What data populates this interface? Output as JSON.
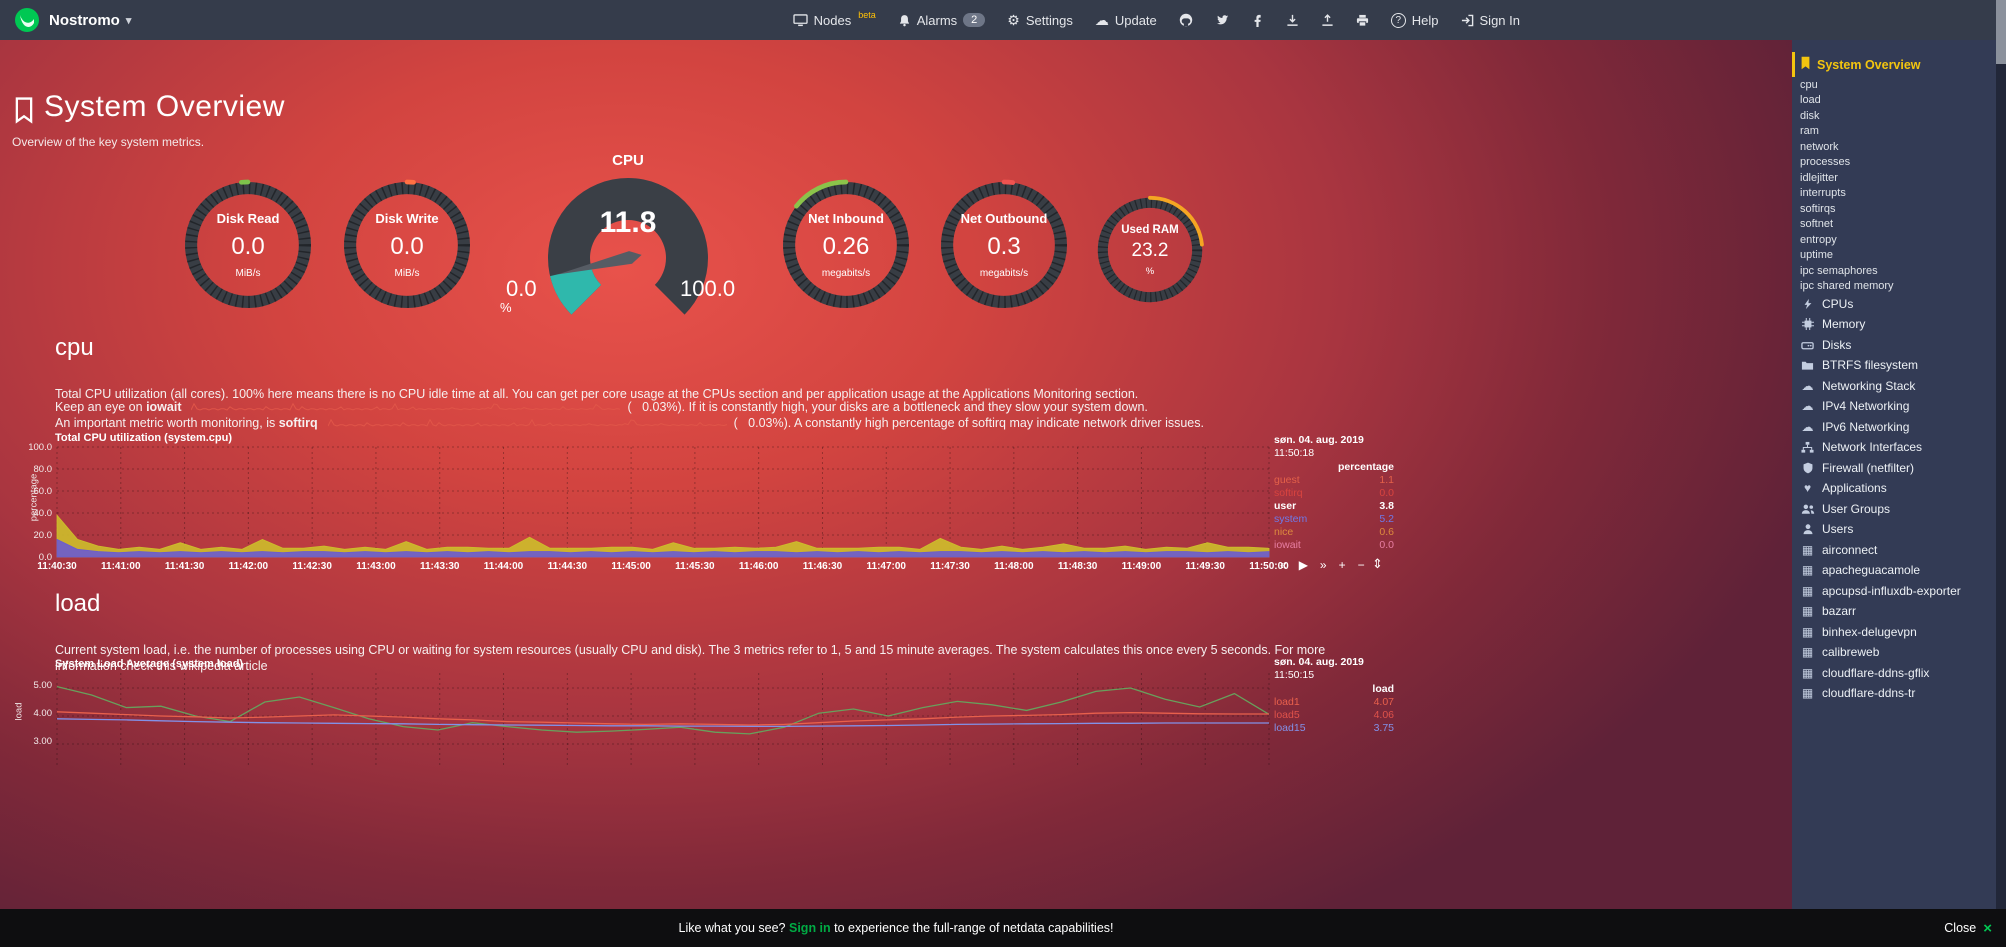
{
  "icons": {
    "caret_down": "▾",
    "gear": "⚙",
    "cloud": "☁",
    "question": "?",
    "heart": "♥",
    "grid": "▦",
    "play": "▶",
    "rewind": "«",
    "forward": "»",
    "plus": "+",
    "minus": "−",
    "resize": "⇕",
    "close": "×"
  },
  "navbar": {
    "brand": "Nostromo",
    "menu": [
      {
        "label": "Nodes",
        "badge": "beta"
      },
      {
        "label": "Alarms",
        "badge": "2"
      },
      {
        "label": "Settings",
        "badge": ""
      },
      {
        "label": "Update",
        "badge": ""
      }
    ],
    "help_label": "Help",
    "signin_label": "Sign In"
  },
  "header": {
    "title": "System Overview",
    "subtitle": "Overview of the key system metrics."
  },
  "gauges": [
    {
      "title": "Disk Read",
      "value": "0.0",
      "unit": "MiB/s",
      "color": "#7dc24b",
      "arc_deg": 6,
      "dir": -1
    },
    {
      "title": "Disk Write",
      "value": "0.0",
      "unit": "MiB/s",
      "color": "#ff7043",
      "arc_deg": 6,
      "dir": 1
    },
    {
      "title": "Net Inbound",
      "value": "0.26",
      "unit": "megabits/s",
      "color": "#8bc34a",
      "arc_deg": 52,
      "dir": -1
    },
    {
      "title": "Net Outbound",
      "value": "0.3",
      "unit": "megabits/s",
      "color": "#ef5350",
      "arc_deg": 8,
      "dir": 1
    },
    {
      "title": "Used RAM",
      "value": "23.2",
      "unit": "%",
      "color": "#f5a623",
      "arc_deg": 84,
      "dir": 1
    }
  ],
  "cpu_gauge": {
    "title": "CPU",
    "value": "11.8",
    "min": "0.0",
    "max": "100.0",
    "unit": "%",
    "percent": 11.8,
    "fill_color": "#2FB8AC",
    "body_color": "#3a3f46",
    "needle_color": "#565c64"
  },
  "cpu_section": {
    "heading": "cpu",
    "para": "Total CPU utilization (all cores). 100% here means there is no CPU idle time at all. You can get per core usage at the CPUs section and per application usage at the Applications Monitoring section.",
    "iowait_prefix": "Keep an eye on",
    "iowait_term": "iowait",
    "iowait_suffix": "(   0.03%). If it is constantly high, your disks are a bottleneck and they slow your system down.",
    "softirq_prefix": "An important metric worth monitoring, is",
    "softirq_term": "softirq",
    "softirq_suffix": "(   0.03%). A constantly high percentage of softirq may indicate network driver issues."
  },
  "load_section": {
    "heading": "load",
    "para": "Current system load, i.e. the number of processes using CPU or waiting for system resources (usually CPU and disk). The 3 metrics refer to 1, 5 and 15 minute averages. The system calculates this once every 5 seconds. For more information check this wikipedia article"
  },
  "chart_data": [
    {
      "id": "cpu",
      "type": "area",
      "title": "Total CPU utilization (system.cpu)",
      "ylabel": "percentage",
      "unit": "percentage",
      "ylim": [
        0,
        100
      ],
      "yticks": [
        "0.0",
        "20.0",
        "40.0",
        "60.0",
        "80.0",
        "100.0"
      ],
      "xticks": [
        "11:40:30",
        "11:41:00",
        "11:41:30",
        "11:42:00",
        "11:42:30",
        "11:43:00",
        "11:43:30",
        "11:44:00",
        "11:44:30",
        "11:45:00",
        "11:45:30",
        "11:46:00",
        "11:46:30",
        "11:47:00",
        "11:47:30",
        "11:48:00",
        "11:48:30",
        "11:49:00",
        "11:49:30",
        "11:50:00"
      ],
      "timestamp_date": "søn. 04. aug. 2019",
      "timestamp_time": "11:50:18",
      "legend": [
        {
          "name": "guest",
          "value": "1.1",
          "color": "#e36049"
        },
        {
          "name": "softirq",
          "value": "0.0",
          "color": "#d9443f"
        },
        {
          "name": "user",
          "value": "3.8",
          "color": "#ffffff",
          "selected": true
        },
        {
          "name": "system",
          "value": "5.2",
          "color": "#6f79e8"
        },
        {
          "name": "nice",
          "value": "0.6",
          "color": "#dd8a3e"
        },
        {
          "name": "iowait",
          "value": "0.0",
          "color": "#e87ea2"
        }
      ],
      "series": [
        {
          "name": "system",
          "color": "#6a5bd0",
          "values": [
            16,
            7,
            5,
            4,
            5,
            4,
            5,
            4,
            5,
            4,
            5,
            4,
            5,
            5,
            4,
            5,
            4,
            5,
            4,
            5,
            4,
            5,
            4,
            5,
            5,
            4,
            5,
            4,
            5,
            4,
            5,
            4,
            5,
            4,
            5,
            5,
            4,
            5,
            4,
            5,
            4,
            5,
            4,
            5,
            5,
            4,
            5,
            4,
            5,
            4,
            5,
            4,
            5,
            4,
            5,
            5,
            4,
            5,
            4,
            5
          ]
        },
        {
          "name": "user",
          "color": "#cdbe2b",
          "values": [
            22,
            9,
            5,
            3,
            4,
            3,
            8,
            3,
            4,
            3,
            11,
            4,
            3,
            5,
            3,
            4,
            3,
            9,
            3,
            4,
            5,
            3,
            4,
            13,
            3,
            4,
            3,
            5,
            4,
            3,
            8,
            4,
            3,
            5,
            3,
            4,
            10,
            3,
            4,
            3,
            5,
            4,
            3,
            12,
            4,
            3,
            5,
            3,
            4,
            8,
            3,
            4,
            5,
            3,
            4,
            3,
            9,
            4,
            5,
            3
          ]
        }
      ]
    },
    {
      "id": "load",
      "type": "line",
      "title": "System Load Average (system.load)",
      "ylabel": "load",
      "unit": "load",
      "ylim": [
        3,
        5
      ],
      "yticks": [
        "3.00",
        "4.00",
        "5.00"
      ],
      "timestamp_date": "søn. 04. aug. 2019",
      "timestamp_time": "11:50:15",
      "legend": [
        {
          "name": "load1",
          "value": "4.07",
          "color": "#e8604c"
        },
        {
          "name": "load5",
          "value": "4.06",
          "color": "#e0524a"
        },
        {
          "name": "load15",
          "value": "3.75",
          "color": "#8291e8"
        }
      ],
      "series": [
        {
          "name": "load5",
          "color": "#68a05c",
          "values": [
            5.05,
            4.75,
            4.3,
            4.35,
            4.0,
            3.8,
            4.5,
            4.68,
            4.3,
            3.9,
            3.62,
            3.5,
            3.76,
            3.62,
            3.5,
            3.42,
            3.46,
            3.52,
            3.6,
            3.42,
            3.36,
            3.6,
            4.1,
            4.25,
            4.0,
            4.3,
            4.52,
            4.4,
            4.2,
            4.5,
            4.88,
            5.0,
            4.6,
            4.32,
            4.8,
            4.06
          ]
        },
        {
          "name": "load1",
          "color": "#e8604c",
          "values": [
            4.15,
            4.1,
            4.05,
            4.0,
            3.97,
            3.93,
            3.96,
            4.0,
            4.04,
            4.0,
            3.96,
            3.9,
            3.86,
            3.8,
            3.78,
            3.75,
            3.72,
            3.7,
            3.72,
            3.7,
            3.68,
            3.7,
            3.76,
            3.82,
            3.86,
            3.9,
            3.96,
            4.0,
            4.02,
            4.05,
            4.1,
            4.12,
            4.1,
            4.08,
            4.07,
            4.07
          ]
        },
        {
          "name": "load15",
          "color": "#8291e8",
          "values": [
            3.9,
            3.88,
            3.86,
            3.83,
            3.8,
            3.78,
            3.76,
            3.75,
            3.74,
            3.73,
            3.72,
            3.7,
            3.69,
            3.68,
            3.67,
            3.66,
            3.65,
            3.65,
            3.64,
            3.64,
            3.63,
            3.63,
            3.64,
            3.65,
            3.66,
            3.68,
            3.7,
            3.71,
            3.72,
            3.73,
            3.74,
            3.74,
            3.75,
            3.75,
            3.75,
            3.75
          ]
        }
      ]
    }
  ],
  "sidebar": {
    "active_label": "System Overview",
    "sub_items": [
      "cpu",
      "load",
      "disk",
      "ram",
      "network",
      "processes",
      "idlejitter",
      "interrupts",
      "softirqs",
      "softnet",
      "entropy",
      "uptime",
      "ipc semaphores",
      "ipc shared memory"
    ],
    "sections": [
      {
        "icon": "bolt",
        "label": "CPUs"
      },
      {
        "icon": "microchip",
        "label": "Memory"
      },
      {
        "icon": "hdd",
        "label": "Disks"
      },
      {
        "icon": "folder",
        "label": "BTRFS filesystem"
      },
      {
        "icon": "cloud",
        "label": "Networking Stack"
      },
      {
        "icon": "cloud",
        "label": "IPv4 Networking"
      },
      {
        "icon": "cloud",
        "label": "IPv6 Networking"
      },
      {
        "icon": "sitemap",
        "label": "Network Interfaces"
      },
      {
        "icon": "shield",
        "label": "Firewall (netfilter)"
      },
      {
        "icon": "heart",
        "label": "Applications"
      },
      {
        "icon": "users",
        "label": "User Groups"
      },
      {
        "icon": "user",
        "label": "Users"
      },
      {
        "icon": "grid",
        "label": "airconnect"
      },
      {
        "icon": "grid",
        "label": "apacheguacamole"
      },
      {
        "icon": "grid",
        "label": "apcupsd-influxdb-exporter"
      },
      {
        "icon": "grid",
        "label": "bazarr"
      },
      {
        "icon": "grid",
        "label": "binhex-delugevpn"
      },
      {
        "icon": "grid",
        "label": "calibreweb"
      },
      {
        "icon": "grid",
        "label": "cloudflare-ddns-gflix"
      },
      {
        "icon": "grid",
        "label": "cloudflare-ddns-tr"
      }
    ]
  },
  "footer": {
    "prefix": "Like what you see? ",
    "signin": "Sign in",
    "suffix": " to experience the full-range of netdata capabilities!",
    "close": "Close"
  }
}
